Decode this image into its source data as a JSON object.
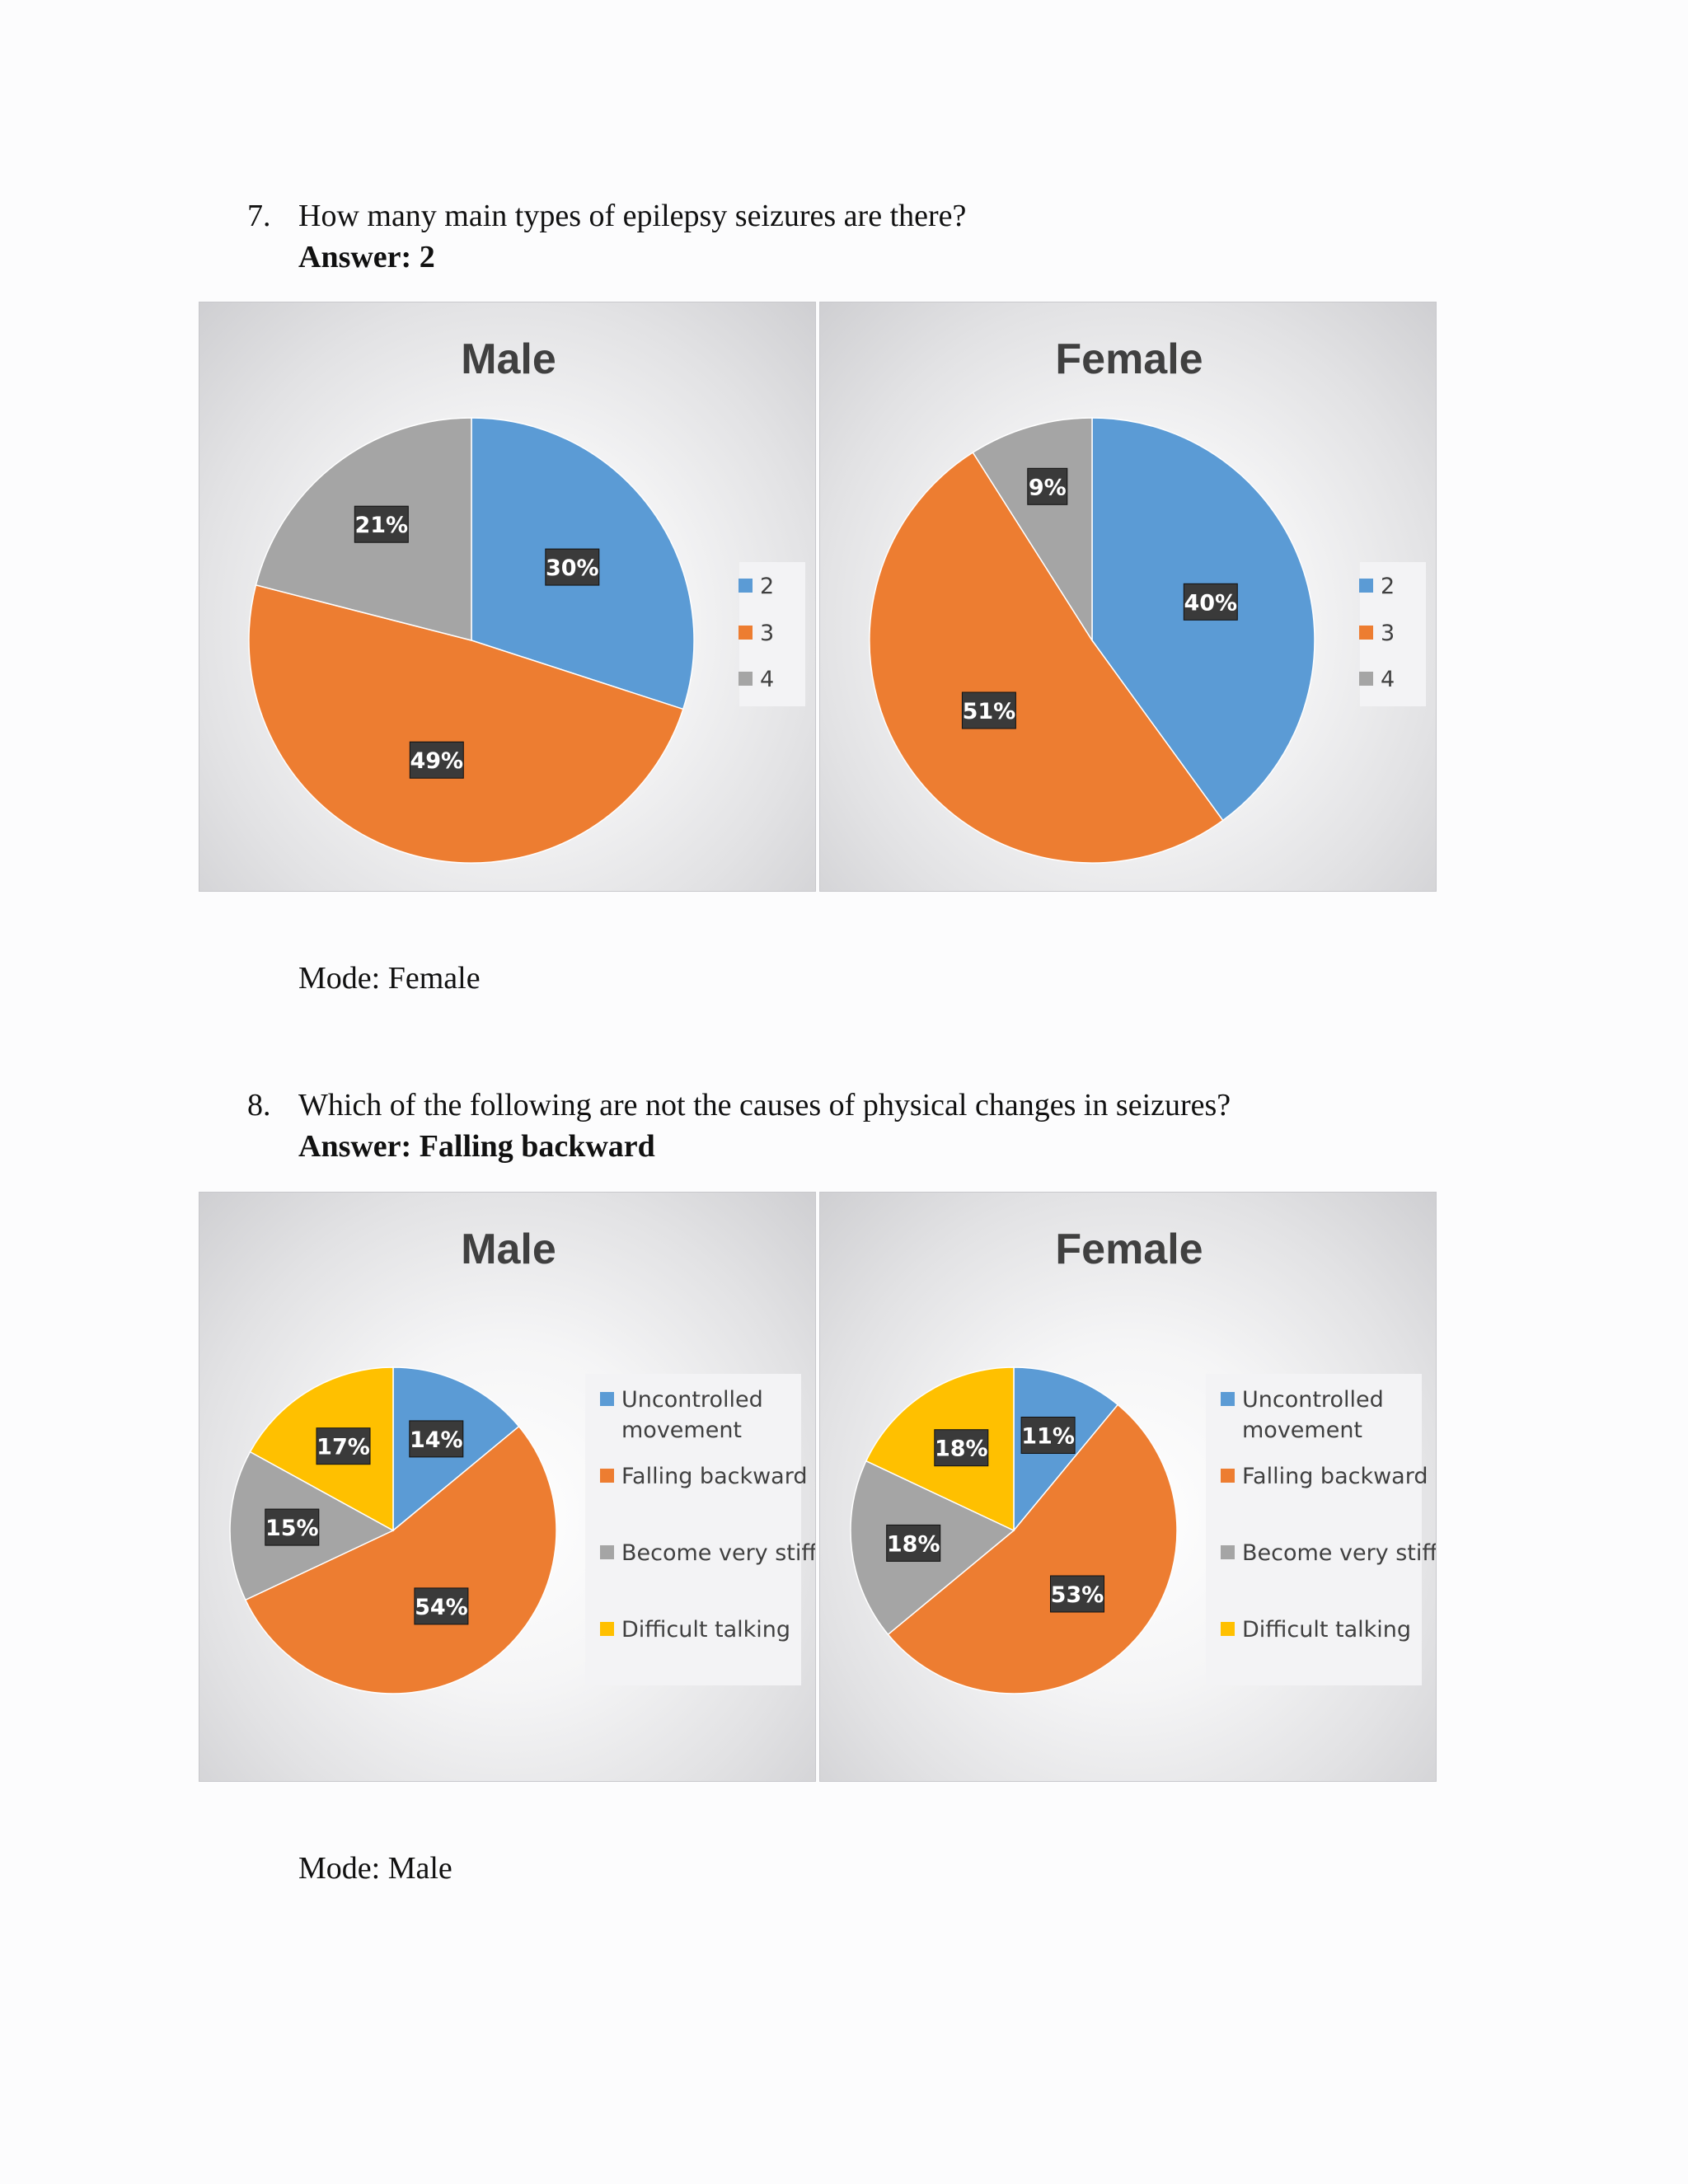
{
  "q7": {
    "number": "7.",
    "question": "How many main types of epilepsy seizures are there?",
    "answer": "Answer: 2",
    "mode": "Mode: Female"
  },
  "q8": {
    "number": "8.",
    "question": "Which of the following are not the causes of physical changes in seizures?",
    "answer": "Answer: Falling backward",
    "mode": "Mode: Male"
  },
  "colors": {
    "blue": "#5b9bd5",
    "orange": "#ed7d31",
    "gray": "#a5a5a5",
    "yellow": "#ffc000"
  },
  "chart_data": [
    {
      "type": "pie",
      "title": "Male",
      "legend": "right",
      "categories": [
        "2",
        "3",
        "4"
      ],
      "values": [
        30,
        49,
        21
      ],
      "labels": [
        "30%",
        "49%",
        "21%"
      ],
      "colors": [
        "#5b9bd5",
        "#ed7d31",
        "#a5a5a5"
      ]
    },
    {
      "type": "pie",
      "title": "Female",
      "legend": "right",
      "categories": [
        "2",
        "3",
        "4"
      ],
      "values": [
        40,
        51,
        9
      ],
      "labels": [
        "40%",
        "51%",
        "9%"
      ],
      "colors": [
        "#5b9bd5",
        "#ed7d31",
        "#a5a5a5"
      ]
    },
    {
      "type": "pie",
      "title": "Male",
      "legend": "right",
      "categories": [
        "Uncontrolled movement",
        "Falling backward",
        "Become very stiff",
        "Difficult talking"
      ],
      "values": [
        14,
        54,
        15,
        17
      ],
      "labels": [
        "14%",
        "54%",
        "15%",
        "17%"
      ],
      "colors": [
        "#5b9bd5",
        "#ed7d31",
        "#a5a5a5",
        "#ffc000"
      ]
    },
    {
      "type": "pie",
      "title": "Female",
      "legend": "right",
      "categories": [
        "Uncontrolled movement",
        "Falling backward",
        "Become very stiff",
        "Difficult talking"
      ],
      "values": [
        11,
        53,
        18,
        18
      ],
      "labels": [
        "11%",
        "53%",
        "18%",
        "18%"
      ],
      "colors": [
        "#5b9bd5",
        "#ed7d31",
        "#a5a5a5",
        "#ffc000"
      ]
    }
  ]
}
